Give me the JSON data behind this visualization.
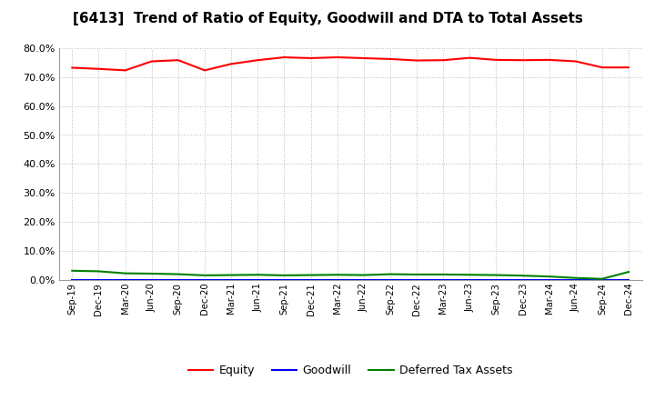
{
  "title": "[6413]  Trend of Ratio of Equity, Goodwill and DTA to Total Assets",
  "x_labels": [
    "Sep-19",
    "Dec-19",
    "Mar-20",
    "Jun-20",
    "Sep-20",
    "Dec-20",
    "Mar-21",
    "Jun-21",
    "Sep-21",
    "Dec-21",
    "Mar-22",
    "Jun-22",
    "Sep-22",
    "Dec-22",
    "Mar-23",
    "Jun-23",
    "Sep-23",
    "Dec-23",
    "Mar-24",
    "Jun-24",
    "Sep-24",
    "Dec-24"
  ],
  "equity": [
    73.2,
    72.8,
    72.3,
    75.4,
    75.8,
    72.3,
    74.5,
    75.8,
    76.8,
    76.5,
    76.8,
    76.5,
    76.2,
    75.7,
    75.8,
    76.6,
    75.9,
    75.8,
    75.9,
    75.4,
    73.3,
    73.3
  ],
  "goodwill": [
    0.0,
    0.0,
    0.0,
    0.0,
    0.0,
    0.0,
    0.0,
    0.0,
    0.0,
    0.0,
    0.0,
    0.0,
    0.0,
    0.0,
    0.0,
    0.0,
    0.0,
    0.0,
    0.0,
    0.0,
    0.0,
    0.0
  ],
  "dta": [
    3.2,
    3.0,
    2.3,
    2.2,
    2.0,
    1.6,
    1.7,
    1.8,
    1.6,
    1.7,
    1.8,
    1.7,
    2.0,
    1.9,
    1.9,
    1.8,
    1.7,
    1.5,
    1.2,
    0.7,
    0.4,
    2.8
  ],
  "equity_color": "#FF0000",
  "goodwill_color": "#0000FF",
  "dta_color": "#008000",
  "ylim": [
    0.0,
    80.0
  ],
  "yticks": [
    0.0,
    10.0,
    20.0,
    30.0,
    40.0,
    50.0,
    60.0,
    70.0,
    80.0
  ],
  "bg_color": "#FFFFFF",
  "grid_color": "#BBBBBB",
  "title_fontsize": 11,
  "legend_labels": [
    "Equity",
    "Goodwill",
    "Deferred Tax Assets"
  ]
}
